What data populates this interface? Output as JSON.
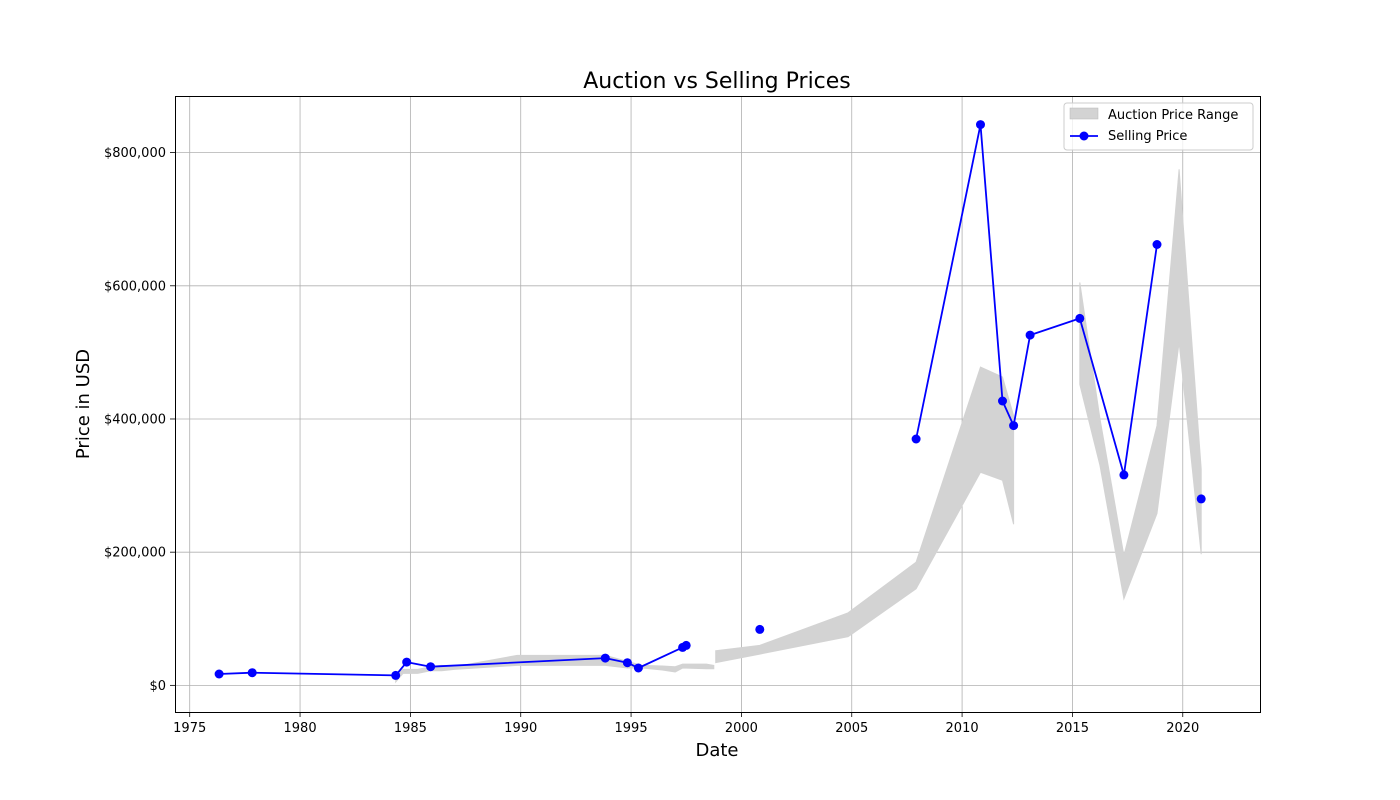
{
  "chart_data": {
    "type": "line",
    "title": "Auction vs Selling Prices",
    "xlabel": "Date",
    "ylabel": "Price in USD",
    "xlim": [
      "1974-05-01",
      "2023-07-01"
    ],
    "ylim": [
      -40000,
      885000
    ],
    "x_ticks": [
      "1975",
      "1980",
      "1985",
      "1990",
      "1995",
      "2000",
      "2005",
      "2010",
      "2015",
      "2020"
    ],
    "y_ticks": [
      "$0",
      "$200,000",
      "$400,000",
      "$600,000",
      "$800,000"
    ],
    "y_tick_values": [
      0,
      200000,
      400000,
      600000,
      800000
    ],
    "grid": true,
    "legend": {
      "placement": "top-right",
      "entries": [
        "Auction Price Range",
        "Selling Price"
      ]
    },
    "series": [
      {
        "name": "Selling Price",
        "kind": "line-marker",
        "color": "#0000ff",
        "points": [
          {
            "x": "1976-05-01",
            "y": 17000
          },
          {
            "x": "1977-11-01",
            "y": 19000
          },
          {
            "x": "1984-05-01",
            "y": 15000
          },
          {
            "x": "1984-11-01",
            "y": 35000
          },
          {
            "x": "1985-12-01",
            "y": 28000
          },
          {
            "x": "1993-11-01",
            "y": 41000
          },
          {
            "x": "1994-11-01",
            "y": 34000
          },
          {
            "x": "1995-05-01",
            "y": 26000
          },
          {
            "x": "1997-05-01",
            "y": 57000
          },
          {
            "x": "1997-07-01",
            "y": 60000
          },
          {
            "x": "2000-11-01",
            "y": 84000,
            "break_before": true
          },
          {
            "x": "2007-12-01",
            "y": 370000,
            "break_before": true
          },
          {
            "x": "2010-11-01",
            "y": 842000
          },
          {
            "x": "2011-11-01",
            "y": 427000
          },
          {
            "x": "2012-05-01",
            "y": 390000
          },
          {
            "x": "2013-02-01",
            "y": 526000
          },
          {
            "x": "2015-05-01",
            "y": 551000
          },
          {
            "x": "2017-05-01",
            "y": 316000
          },
          {
            "x": "2018-11-01",
            "y": 662000
          },
          {
            "x": "2020-11-01",
            "y": 280000,
            "break_before": true
          }
        ]
      },
      {
        "name": "Auction Price Range",
        "kind": "band",
        "color": "#d3d3d3",
        "segments": [
          [
            {
              "x": "1984-05-01",
              "low": 5000,
              "high": 15000
            },
            {
              "x": "1984-09-01",
              "low": 18000,
              "high": 24000
            },
            {
              "x": "1985-05-01",
              "low": 18000,
              "high": 24000
            },
            {
              "x": "1985-12-01",
              "low": 22000,
              "high": 28000
            },
            {
              "x": "1986-06-01",
              "low": 22000,
              "high": 30000
            },
            {
              "x": "1987-01-01",
              "low": 24000,
              "high": 28000
            },
            {
              "x": "1989-11-01",
              "low": 30000,
              "high": 45000
            },
            {
              "x": "1993-11-01",
              "low": 30000,
              "high": 45000
            },
            {
              "x": "1994-11-01",
              "low": 26000,
              "high": 36000
            },
            {
              "x": "1995-07-01",
              "low": 26000,
              "high": 30000
            },
            {
              "x": "1996-06-01",
              "low": 23000,
              "high": 29000
            },
            {
              "x": "1997-01-01",
              "low": 20000,
              "high": 28000
            },
            {
              "x": "1997-05-01",
              "low": 26000,
              "high": 32000
            },
            {
              "x": "1998-06-01",
              "low": 25000,
              "high": 32000
            },
            {
              "x": "1998-10-01",
              "low": 25000,
              "high": 30000
            }
          ],
          [
            {
              "x": "1998-11-01",
              "low": 34000,
              "high": 52000
            },
            {
              "x": "2000-11-01",
              "low": 47000,
              "high": 60000
            },
            {
              "x": "2004-11-01",
              "low": 73000,
              "high": 109000
            },
            {
              "x": "2007-12-01",
              "low": 145000,
              "high": 185000
            },
            {
              "x": "2010-11-01",
              "low": 320000,
              "high": 478000
            },
            {
              "x": "2011-11-01",
              "low": 308000,
              "high": 463000
            },
            {
              "x": "2012-05-01",
              "low": 242000,
              "high": 405000
            }
          ],
          [
            {
              "x": "2015-05-01",
              "low": 452000,
              "high": 605000
            },
            {
              "x": "2016-04-01",
              "low": 330000,
              "high": 400000
            },
            {
              "x": "2017-05-01",
              "low": 130000,
              "high": 195000
            },
            {
              "x": "2018-11-01",
              "low": 258000,
              "high": 390000
            },
            {
              "x": "2019-11-01",
              "low": 515000,
              "high": 775000
            },
            {
              "x": "2020-11-01",
              "low": 197000,
              "high": 325000
            }
          ]
        ]
      }
    ]
  }
}
